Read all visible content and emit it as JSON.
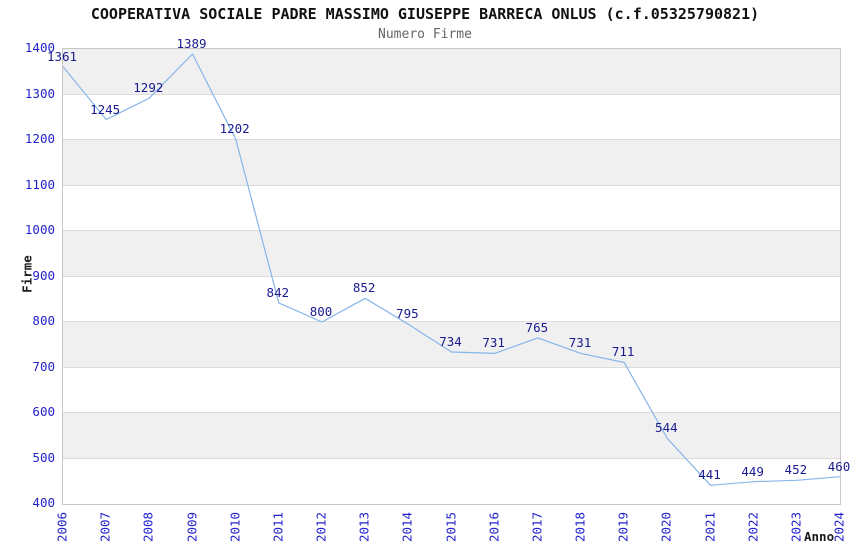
{
  "chart_data": {
    "type": "line",
    "title": "COOPERATIVA SOCIALE PADRE MASSIMO GIUSEPPE BARRECA ONLUS (c.f.05325790821)",
    "subtitle": "Numero Firme",
    "xlabel": "Anno",
    "ylabel": "Firme",
    "x": [
      "2006",
      "2007",
      "2008",
      "2009",
      "2010",
      "2011",
      "2012",
      "2013",
      "2014",
      "2015",
      "2016",
      "2017",
      "2018",
      "2019",
      "2020",
      "2021",
      "2022",
      "2023",
      "2024"
    ],
    "series": [
      {
        "name": "Numero Firme",
        "values": [
          1361,
          1245,
          1292,
          1389,
          1202,
          842,
          800,
          852,
          795,
          734,
          731,
          765,
          731,
          711,
          544,
          441,
          449,
          452,
          460
        ]
      }
    ],
    "ylim": [
      400,
      1400
    ],
    "ytick_step": 100,
    "yticks": [
      400,
      500,
      600,
      700,
      800,
      900,
      1000,
      1100,
      1200,
      1300,
      1400
    ],
    "grid": "alternating horizontal gray/white bands, band edges at every 100",
    "legend": "none",
    "data_labels_visible": true,
    "markers": "none",
    "colors": {
      "line": "#86b5ea",
      "tick_label": "#2323cc",
      "data_label": "#1a1a8f",
      "band_gray": "#f0f0f0",
      "band_white": "#ffffff",
      "band_edge": "#dcdcdc",
      "plot_border": "#c6c6c6",
      "title": "#111111",
      "subtitle": "#666666",
      "axis_title": "#1a1a1a",
      "background": "#ffffff"
    }
  }
}
